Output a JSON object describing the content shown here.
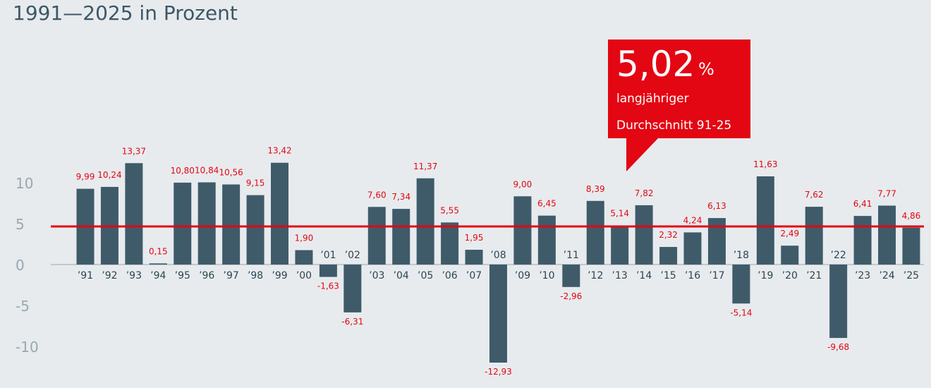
{
  "chart_data": {
    "type": "bar",
    "title": "1991—2025 in Prozent",
    "categories": [
      "’91",
      "’92",
      "’93",
      "’94",
      "’95",
      "’96",
      "’97",
      "’98",
      "’99",
      "’00",
      "’01",
      "’02",
      "’03",
      "’04",
      "’05",
      "’06",
      "’07",
      "’08",
      "’09",
      "’10",
      "’11",
      "’12",
      "’13",
      "’14",
      "’15",
      "’16",
      "’17",
      "’18",
      "’19",
      "’20",
      "’21",
      "’22",
      "’23",
      "’24",
      "’25"
    ],
    "values": [
      9.99,
      10.24,
      13.37,
      0.15,
      10.8,
      10.84,
      10.56,
      9.15,
      13.42,
      1.9,
      -1.63,
      -6.31,
      7.6,
      7.34,
      11.37,
      5.55,
      1.95,
      -12.93,
      9.0,
      6.45,
      -2.96,
      8.39,
      5.14,
      7.82,
      2.32,
      4.24,
      6.13,
      -5.14,
      11.63,
      2.49,
      7.62,
      -9.68,
      6.41,
      7.77,
      4.86
    ],
    "value_labels": [
      "9,99",
      "10,24",
      "13,37",
      "0,15",
      "10,80",
      "10,84",
      "10,56",
      "9,15",
      "13,42",
      "1,90",
      "-1,63",
      "-6,31",
      "7,60",
      "7,34",
      "11,37",
      "5,55",
      "1,95",
      "-12,93",
      "9,00",
      "6,45",
      "-2,96",
      "8,39",
      "5,14",
      "7,82",
      "2,32",
      "4,24",
      "6,13",
      "-5,14",
      "11,63",
      "2,49",
      "7,62",
      "-9,68",
      "6,41",
      "7,77",
      "4,86"
    ],
    "yticks": [
      10,
      5,
      0,
      -5,
      -10
    ],
    "ylim": [
      -13,
      14
    ],
    "average": 5.02,
    "colors": {
      "bar": "#3f5b69",
      "label": "#e30613",
      "average": "#e30613",
      "tick": "#9aa7b0"
    }
  },
  "callout": {
    "value": "5,02",
    "unit": "%",
    "line1": "langjähriger",
    "line2": "Durchschnitt 91-25"
  }
}
